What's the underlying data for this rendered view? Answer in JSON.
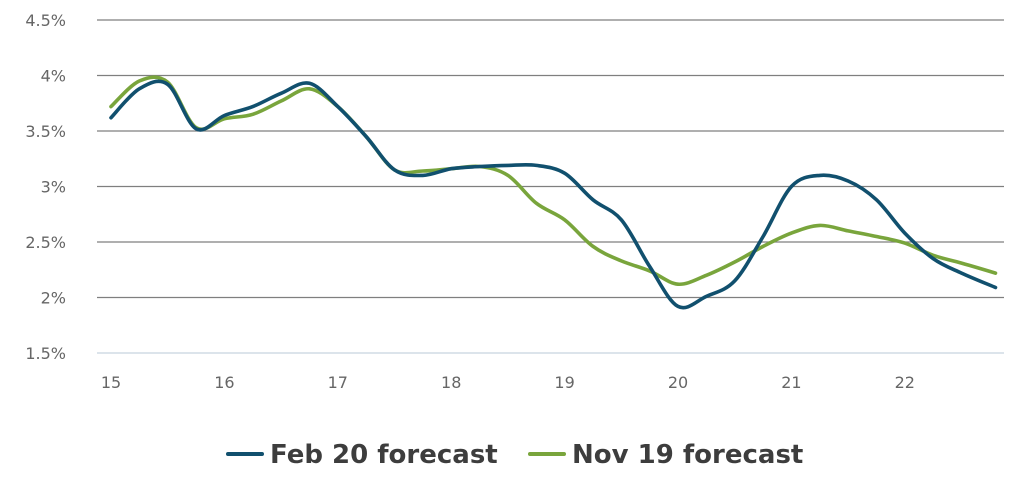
{
  "chart_data": {
    "type": "line",
    "title": "",
    "xlabel": "",
    "ylabel": "",
    "x_ticks": [
      "15",
      "16",
      "17",
      "18",
      "19",
      "20",
      "21",
      "22"
    ],
    "x_range": [
      15,
      22.8
    ],
    "y_ticks": [
      "1.5%",
      "2%",
      "2.5%",
      "3%",
      "3.5%",
      "4%",
      "4.5%"
    ],
    "ylim": [
      1.5,
      4.5
    ],
    "grid": true,
    "legend_position": "bottom",
    "series": [
      {
        "name": "Feb 20 forecast",
        "color": "#11506e",
        "points": [
          [
            15.0,
            3.62
          ],
          [
            15.25,
            3.88
          ],
          [
            15.5,
            3.92
          ],
          [
            15.75,
            3.52
          ],
          [
            16.0,
            3.64
          ],
          [
            16.25,
            3.72
          ],
          [
            16.5,
            3.84
          ],
          [
            16.75,
            3.93
          ],
          [
            17.0,
            3.72
          ],
          [
            17.25,
            3.45
          ],
          [
            17.5,
            3.15
          ],
          [
            17.75,
            3.1
          ],
          [
            18.0,
            3.16
          ],
          [
            18.25,
            3.18
          ],
          [
            18.5,
            3.19
          ],
          [
            18.75,
            3.19
          ],
          [
            19.0,
            3.12
          ],
          [
            19.25,
            2.88
          ],
          [
            19.5,
            2.7
          ],
          [
            19.75,
            2.28
          ],
          [
            20.0,
            1.92
          ],
          [
            20.25,
            2.01
          ],
          [
            20.5,
            2.15
          ],
          [
            20.75,
            2.55
          ],
          [
            21.0,
            3.0
          ],
          [
            21.25,
            3.1
          ],
          [
            21.5,
            3.05
          ],
          [
            21.75,
            2.88
          ],
          [
            22.0,
            2.58
          ],
          [
            22.25,
            2.35
          ],
          [
            22.5,
            2.22
          ],
          [
            22.8,
            2.09
          ]
        ]
      },
      {
        "name": "Nov 19 forecast",
        "color": "#79a53c",
        "points": [
          [
            15.0,
            3.72
          ],
          [
            15.25,
            3.95
          ],
          [
            15.5,
            3.94
          ],
          [
            15.75,
            3.53
          ],
          [
            16.0,
            3.61
          ],
          [
            16.25,
            3.65
          ],
          [
            16.5,
            3.77
          ],
          [
            16.75,
            3.88
          ],
          [
            17.0,
            3.72
          ],
          [
            17.25,
            3.45
          ],
          [
            17.5,
            3.15
          ],
          [
            17.75,
            3.14
          ],
          [
            18.0,
            3.16
          ],
          [
            18.25,
            3.18
          ],
          [
            18.5,
            3.1
          ],
          [
            18.75,
            2.85
          ],
          [
            19.0,
            2.7
          ],
          [
            19.25,
            2.46
          ],
          [
            19.5,
            2.33
          ],
          [
            19.75,
            2.24
          ],
          [
            20.0,
            2.12
          ],
          [
            20.25,
            2.2
          ],
          [
            20.5,
            2.32
          ],
          [
            20.75,
            2.46
          ],
          [
            21.0,
            2.58
          ],
          [
            21.25,
            2.65
          ],
          [
            21.5,
            2.6
          ],
          [
            21.75,
            2.55
          ],
          [
            22.0,
            2.49
          ],
          [
            22.25,
            2.38
          ],
          [
            22.5,
            2.31
          ],
          [
            22.8,
            2.22
          ]
        ]
      }
    ]
  }
}
